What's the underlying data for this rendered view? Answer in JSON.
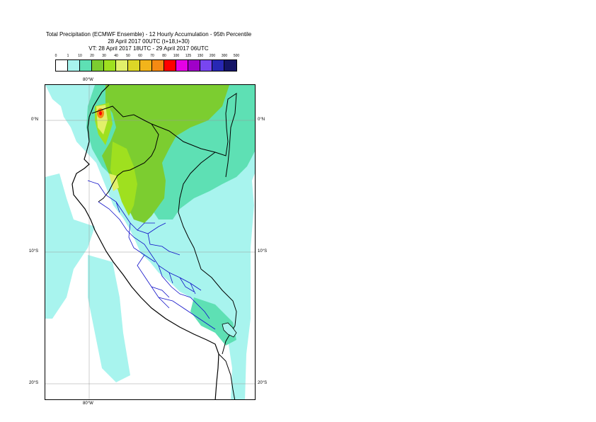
{
  "title": {
    "line1": "Total Precipitation (ECMWF Ensemble) - 12 Hourly Accumulation - 95th Percentile",
    "line2": "28 April 2017 00UTC (t+18,t+30)",
    "line3": "VT: 28 April 2017 18UTC - 29 April 2017 06UTC"
  },
  "legend": {
    "thresholds": [
      "0",
      "1",
      "10",
      "20",
      "30",
      "40",
      "50",
      "60",
      "70",
      "80",
      "100",
      "125",
      "150",
      "200",
      "300",
      "500"
    ],
    "colors": [
      "#ffffff",
      "#a8f4ee",
      "#5ee0b4",
      "#7ccd30",
      "#9fe01f",
      "#e2f06a",
      "#dcd627",
      "#f2b41b",
      "#f58a13",
      "#ff0000",
      "#e600e6",
      "#a000c8",
      "#7846f0",
      "#2828b4",
      "#141466"
    ]
  },
  "map": {
    "lon_label_top": "80°W",
    "lon_label_bottom": "80°W",
    "lat_labels": [
      {
        "name": "0°N",
        "lat": 0
      },
      {
        "name": "10°S",
        "lat": -10
      },
      {
        "name": "20°S",
        "lat": -20
      }
    ]
  }
}
